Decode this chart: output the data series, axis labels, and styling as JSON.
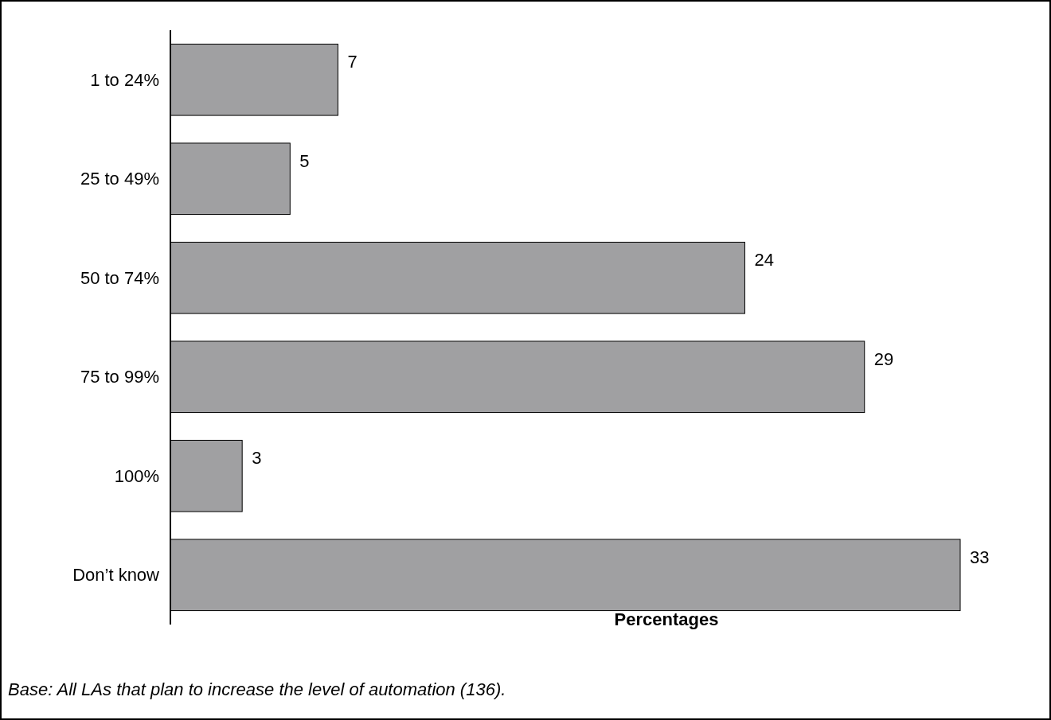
{
  "chart_data": {
    "type": "bar",
    "orientation": "horizontal",
    "categories": [
      "1 to 24%",
      "25 to 49%",
      "50 to 74%",
      "75 to 99%",
      "100%",
      "Don’t know"
    ],
    "values": [
      7,
      5,
      24,
      29,
      3,
      33
    ],
    "color": "#a0a0a2",
    "xlabel": "Percentages",
    "data_labels": true,
    "annotations": [
      "Base: All LAs that plan to increase the level of automation (136)."
    ]
  }
}
